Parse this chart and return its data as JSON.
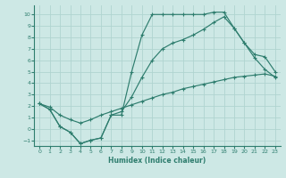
{
  "xlabel": "Humidex (Indice chaleur)",
  "background_color": "#cde8e5",
  "grid_color": "#b0d4d0",
  "line_color": "#2e7d6e",
  "xlim": [
    -0.5,
    23.5
  ],
  "ylim": [
    -1.5,
    10.8
  ],
  "xticks": [
    0,
    1,
    2,
    3,
    4,
    5,
    6,
    7,
    8,
    9,
    10,
    11,
    12,
    13,
    14,
    15,
    16,
    17,
    18,
    19,
    20,
    21,
    22,
    23
  ],
  "yticks": [
    -1,
    0,
    1,
    2,
    3,
    4,
    5,
    6,
    7,
    8,
    9,
    10
  ],
  "s1_x": [
    0,
    1,
    2,
    3,
    4,
    5,
    6,
    7,
    8,
    9,
    10,
    11,
    12,
    13,
    14,
    15,
    16,
    17,
    18,
    19,
    20,
    21,
    22,
    23
  ],
  "s1_y": [
    2.2,
    1.7,
    0.2,
    -0.3,
    -1.3,
    -1.0,
    -0.8,
    1.2,
    1.2,
    5.0,
    8.2,
    10.0,
    10.0,
    10.0,
    10.0,
    10.0,
    10.0,
    10.2,
    10.2,
    8.8,
    7.5,
    6.2,
    5.2,
    4.5
  ],
  "s2_x": [
    0,
    1,
    2,
    3,
    4,
    5,
    6,
    7,
    8,
    9,
    10,
    11,
    12,
    13,
    14,
    15,
    16,
    17,
    18,
    19,
    20,
    21,
    22,
    23
  ],
  "s2_y": [
    2.2,
    1.7,
    0.2,
    -0.3,
    -1.3,
    -1.0,
    -0.8,
    1.2,
    1.5,
    2.8,
    4.5,
    6.0,
    7.0,
    7.5,
    7.8,
    8.2,
    8.7,
    9.3,
    9.8,
    8.8,
    7.5,
    6.5,
    6.3,
    5.0
  ],
  "s3_x": [
    0,
    1,
    2,
    3,
    4,
    5,
    6,
    7,
    8,
    9,
    10,
    11,
    12,
    13,
    14,
    15,
    16,
    17,
    18,
    19,
    20,
    21,
    22,
    23
  ],
  "s3_y": [
    2.2,
    1.9,
    1.2,
    0.8,
    0.5,
    0.8,
    1.2,
    1.5,
    1.8,
    2.1,
    2.4,
    2.7,
    3.0,
    3.2,
    3.5,
    3.7,
    3.9,
    4.1,
    4.3,
    4.5,
    4.6,
    4.7,
    4.8,
    4.6
  ]
}
